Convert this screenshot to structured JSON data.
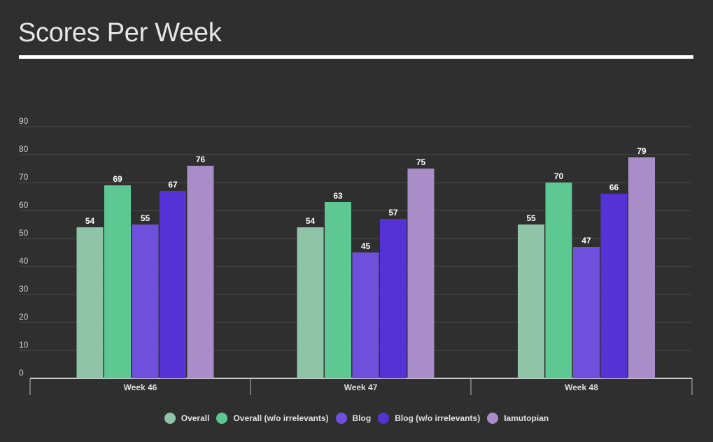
{
  "chart_data": {
    "type": "bar",
    "title": "Scores Per Week",
    "categories": [
      "Week 46",
      "Week 47",
      "Week 48"
    ],
    "series": [
      {
        "name": "Overall",
        "color": "#8fc4a8",
        "values": [
          54,
          54,
          55
        ]
      },
      {
        "name": "Overall (w/o irrelevants)",
        "color": "#5ec893",
        "values": [
          69,
          63,
          70
        ]
      },
      {
        "name": "Blog",
        "color": "#6f50dc",
        "values": [
          55,
          45,
          47
        ]
      },
      {
        "name": "Blog (w/o irrelevants)",
        "color": "#5532d6",
        "values": [
          67,
          57,
          66
        ]
      },
      {
        "name": "Iamutopian",
        "color": "#a98dc8",
        "values": [
          76,
          75,
          79
        ]
      }
    ],
    "yticks": [
      0,
      10,
      20,
      30,
      40,
      50,
      60,
      70,
      80,
      90
    ],
    "ylim": [
      0,
      90
    ],
    "grid": true,
    "legend": "bottom",
    "xlabel": "",
    "ylabel": ""
  }
}
